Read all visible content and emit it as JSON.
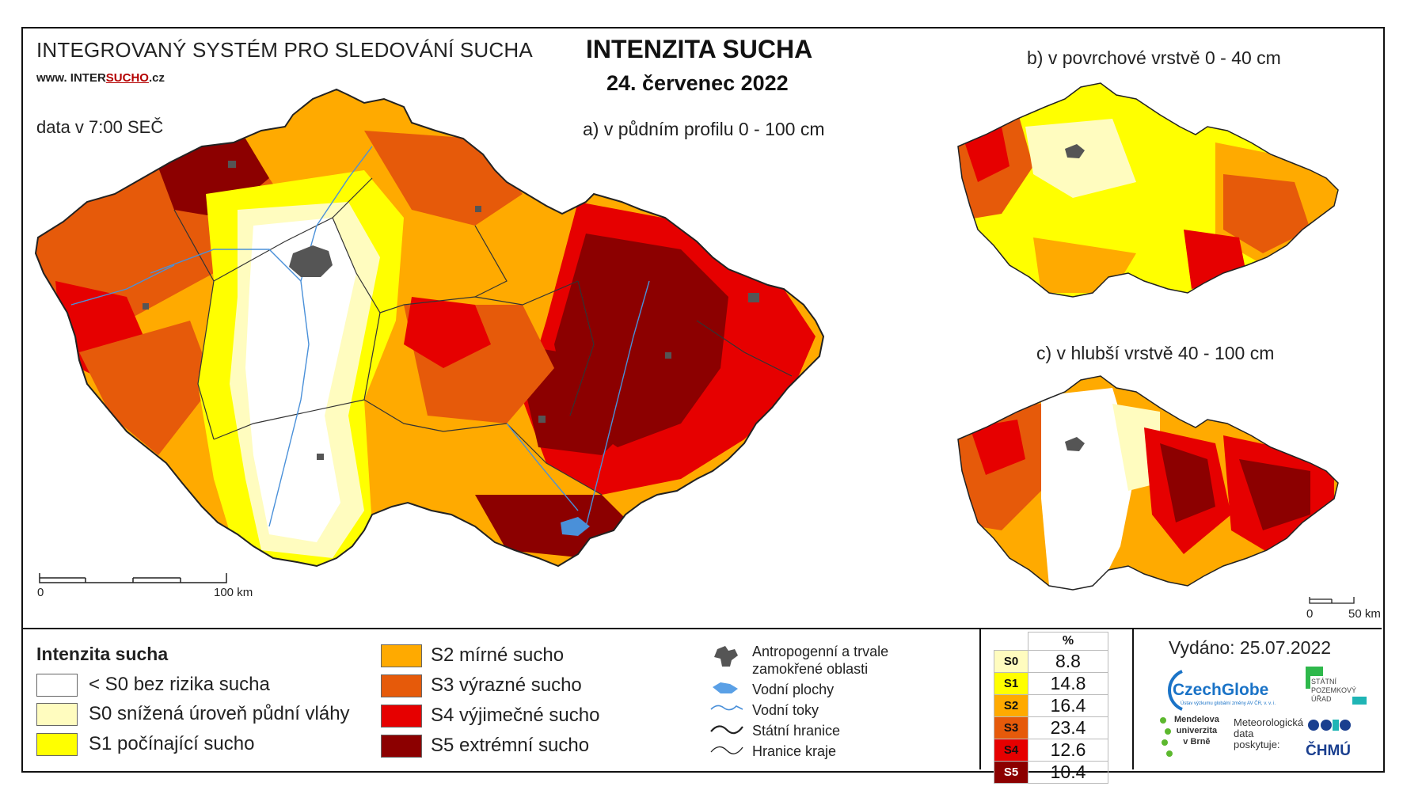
{
  "header": {
    "system_title": "INTEGROVANÝ SYSTÉM PRO SLEDOVÁNÍ SUCHA",
    "website_prefix": "www. INTER",
    "website_underlined": "SUCHO",
    "website_suffix": ".cz",
    "data_time": "data v 7:00 SEČ",
    "main_title": "INTENZITA SUCHA",
    "date": "24. červenec 2022"
  },
  "maps": {
    "a_label": "a) v půdním profilu 0 - 100 cm",
    "b_label": "b) v povrchové vrstvě 0 - 40 cm",
    "c_label": "c) v hlubší vrstvě 40 - 100 cm",
    "scale_main": {
      "zero": "0",
      "end": "100 km"
    },
    "scale_small": {
      "zero": "0",
      "end": "50 km"
    }
  },
  "legend": {
    "title": "Intenzita sucha",
    "classes": [
      {
        "label": "< S0 bez rizika sucha",
        "color": "#ffffff"
      },
      {
        "label": "S0 snížená úroveň půdní vláhy",
        "color": "#fffcbf"
      },
      {
        "label": "S1 počínající sucho",
        "color": "#ffff00"
      },
      {
        "label": "S2 mírné sucho",
        "color": "#ffaa00"
      },
      {
        "label": "S3 výrazné sucho",
        "color": "#e65a0a"
      },
      {
        "label": "S4 výjimečné sucho",
        "color": "#e60000"
      },
      {
        "label": "S5 extrémní sucho",
        "color": "#8c0000"
      }
    ]
  },
  "symbols": {
    "anthropogenic": [
      "Antropogenní a trvale",
      "zamokřené oblasti"
    ],
    "water_bodies": "Vodní plochy",
    "water_streams": "Vodní toky",
    "state_border": "Státní hranice",
    "region_border": "Hranice kraje"
  },
  "stats": {
    "header": "%",
    "rows": [
      {
        "code": "S0",
        "value": "8.8",
        "color": "#fffcbf"
      },
      {
        "code": "S1",
        "value": "14.8",
        "color": "#ffff00"
      },
      {
        "code": "S2",
        "value": "16.4",
        "color": "#ffaa00"
      },
      {
        "code": "S3",
        "value": "23.4",
        "color": "#e65a0a"
      },
      {
        "code": "S4",
        "value": "12.6",
        "color": "#e60000"
      },
      {
        "code": "S5",
        "value": "10.4",
        "color": "#8c0000"
      }
    ]
  },
  "issued": "Vydáno: 25.07.2022",
  "logos": {
    "czechglobe": "CzechGlobe",
    "czechglobe_sub": "Ústav výzkumu globální změny AV ČR, v. v. i.",
    "spu": [
      "STÁTNÍ",
      "POZEMKOVÝ",
      "ÚŘAD"
    ],
    "mendelu": [
      "Mendelova",
      "univerzita",
      "v Brně"
    ],
    "meteo": [
      "Meteorologická",
      "data",
      "poskytuje:"
    ],
    "chmu": "ČHMÚ"
  }
}
